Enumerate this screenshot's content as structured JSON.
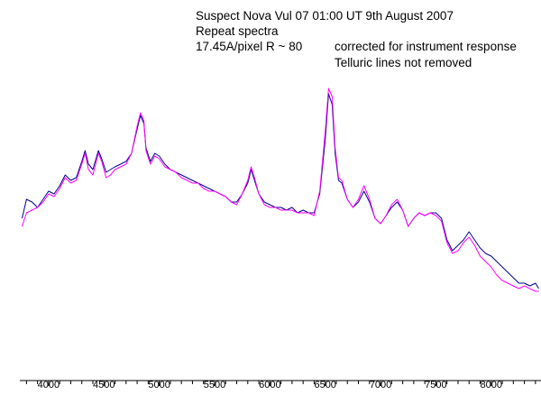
{
  "chart_data": {
    "type": "line",
    "annotations": {
      "line1": "Suspect Nova Vul 07    01:00 UT 9th August 2007",
      "line2": "Repeat spectra",
      "line3": "17.45A/pixel  R ~ 80",
      "line4": "corrected for instrument response",
      "line5": "Telluric lines not removed"
    },
    "xlim": [
      3740,
      8450
    ],
    "ylim": [
      0,
      1
    ],
    "x_ticks": [
      4000,
      4500,
      5000,
      5500,
      6000,
      6500,
      7000,
      7500,
      8000
    ],
    "x_tick_labels": [
      "4000",
      "4500",
      "5000",
      "5500",
      "6000",
      "6500",
      "7000",
      "7500",
      "8000"
    ],
    "grid": false,
    "series": [
      {
        "color": "#00008b",
        "points": [
          [
            3760,
            0.46
          ],
          [
            3800,
            0.53
          ],
          [
            3850,
            0.52
          ],
          [
            3900,
            0.5
          ],
          [
            3950,
            0.53
          ],
          [
            4000,
            0.56
          ],
          [
            4050,
            0.55
          ],
          [
            4100,
            0.58
          ],
          [
            4150,
            0.62
          ],
          [
            4200,
            0.6
          ],
          [
            4250,
            0.61
          ],
          [
            4300,
            0.67
          ],
          [
            4330,
            0.71
          ],
          [
            4360,
            0.66
          ],
          [
            4400,
            0.64
          ],
          [
            4450,
            0.71
          ],
          [
            4480,
            0.68
          ],
          [
            4520,
            0.63
          ],
          [
            4560,
            0.64
          ],
          [
            4600,
            0.65
          ],
          [
            4650,
            0.66
          ],
          [
            4700,
            0.67
          ],
          [
            4750,
            0.7
          ],
          [
            4800,
            0.79
          ],
          [
            4830,
            0.84
          ],
          [
            4861,
            0.81
          ],
          [
            4880,
            0.72
          ],
          [
            4920,
            0.67
          ],
          [
            4960,
            0.7
          ],
          [
            5000,
            0.69
          ],
          [
            5050,
            0.66
          ],
          [
            5100,
            0.64
          ],
          [
            5150,
            0.63
          ],
          [
            5200,
            0.62
          ],
          [
            5250,
            0.61
          ],
          [
            5300,
            0.6
          ],
          [
            5350,
            0.59
          ],
          [
            5400,
            0.58
          ],
          [
            5450,
            0.57
          ],
          [
            5500,
            0.56
          ],
          [
            5550,
            0.55
          ],
          [
            5600,
            0.54
          ],
          [
            5650,
            0.52
          ],
          [
            5700,
            0.52
          ],
          [
            5750,
            0.55
          ],
          [
            5800,
            0.59
          ],
          [
            5830,
            0.64
          ],
          [
            5860,
            0.6
          ],
          [
            5900,
            0.55
          ],
          [
            5950,
            0.52
          ],
          [
            6000,
            0.51
          ],
          [
            6050,
            0.5
          ],
          [
            6100,
            0.5
          ],
          [
            6150,
            0.49
          ],
          [
            6200,
            0.5
          ],
          [
            6250,
            0.48
          ],
          [
            6300,
            0.49
          ],
          [
            6350,
            0.48
          ],
          [
            6400,
            0.48
          ],
          [
            6450,
            0.55
          ],
          [
            6500,
            0.75
          ],
          [
            6530,
            0.92
          ],
          [
            6563,
            0.88
          ],
          [
            6590,
            0.7
          ],
          [
            6620,
            0.6
          ],
          [
            6650,
            0.59
          ],
          [
            6700,
            0.53
          ],
          [
            6750,
            0.5
          ],
          [
            6800,
            0.52
          ],
          [
            6850,
            0.56
          ],
          [
            6900,
            0.52
          ],
          [
            6950,
            0.46
          ],
          [
            7000,
            0.44
          ],
          [
            7050,
            0.47
          ],
          [
            7100,
            0.5
          ],
          [
            7150,
            0.52
          ],
          [
            7200,
            0.49
          ],
          [
            7250,
            0.43
          ],
          [
            7300,
            0.46
          ],
          [
            7350,
            0.48
          ],
          [
            7400,
            0.47
          ],
          [
            7450,
            0.48
          ],
          [
            7500,
            0.48
          ],
          [
            7550,
            0.46
          ],
          [
            7600,
            0.38
          ],
          [
            7650,
            0.34
          ],
          [
            7700,
            0.36
          ],
          [
            7750,
            0.38
          ],
          [
            7800,
            0.41
          ],
          [
            7850,
            0.38
          ],
          [
            7900,
            0.35
          ],
          [
            7950,
            0.33
          ],
          [
            8000,
            0.32
          ],
          [
            8050,
            0.3
          ],
          [
            8100,
            0.28
          ],
          [
            8150,
            0.26
          ],
          [
            8200,
            0.24
          ],
          [
            8250,
            0.22
          ],
          [
            8300,
            0.22
          ],
          [
            8350,
            0.21
          ],
          [
            8400,
            0.22
          ],
          [
            8430,
            0.2
          ]
        ]
      },
      {
        "color": "#ff00ff",
        "points": [
          [
            3760,
            0.43
          ],
          [
            3800,
            0.48
          ],
          [
            3850,
            0.49
          ],
          [
            3900,
            0.5
          ],
          [
            3950,
            0.52
          ],
          [
            4000,
            0.55
          ],
          [
            4050,
            0.54
          ],
          [
            4100,
            0.57
          ],
          [
            4150,
            0.61
          ],
          [
            4200,
            0.59
          ],
          [
            4250,
            0.6
          ],
          [
            4300,
            0.66
          ],
          [
            4330,
            0.7
          ],
          [
            4360,
            0.64
          ],
          [
            4400,
            0.62
          ],
          [
            4450,
            0.7
          ],
          [
            4480,
            0.67
          ],
          [
            4520,
            0.61
          ],
          [
            4560,
            0.62
          ],
          [
            4600,
            0.64
          ],
          [
            4650,
            0.65
          ],
          [
            4700,
            0.66
          ],
          [
            4750,
            0.7
          ],
          [
            4800,
            0.8
          ],
          [
            4830,
            0.85
          ],
          [
            4861,
            0.82
          ],
          [
            4880,
            0.71
          ],
          [
            4920,
            0.66
          ],
          [
            4960,
            0.69
          ],
          [
            5000,
            0.68
          ],
          [
            5050,
            0.65
          ],
          [
            5100,
            0.64
          ],
          [
            5150,
            0.63
          ],
          [
            5200,
            0.61
          ],
          [
            5250,
            0.6
          ],
          [
            5300,
            0.59
          ],
          [
            5350,
            0.59
          ],
          [
            5400,
            0.57
          ],
          [
            5450,
            0.56
          ],
          [
            5500,
            0.56
          ],
          [
            5550,
            0.55
          ],
          [
            5600,
            0.54
          ],
          [
            5650,
            0.52
          ],
          [
            5700,
            0.51
          ],
          [
            5750,
            0.55
          ],
          [
            5800,
            0.6
          ],
          [
            5830,
            0.65
          ],
          [
            5860,
            0.61
          ],
          [
            5900,
            0.55
          ],
          [
            5950,
            0.51
          ],
          [
            6000,
            0.5
          ],
          [
            6050,
            0.5
          ],
          [
            6100,
            0.49
          ],
          [
            6150,
            0.49
          ],
          [
            6200,
            0.49
          ],
          [
            6250,
            0.48
          ],
          [
            6300,
            0.48
          ],
          [
            6350,
            0.48
          ],
          [
            6400,
            0.47
          ],
          [
            6450,
            0.56
          ],
          [
            6500,
            0.78
          ],
          [
            6530,
            0.94
          ],
          [
            6563,
            0.91
          ],
          [
            6590,
            0.72
          ],
          [
            6620,
            0.61
          ],
          [
            6650,
            0.6
          ],
          [
            6700,
            0.53
          ],
          [
            6750,
            0.5
          ],
          [
            6800,
            0.53
          ],
          [
            6850,
            0.58
          ],
          [
            6900,
            0.53
          ],
          [
            6950,
            0.46
          ],
          [
            7000,
            0.44
          ],
          [
            7050,
            0.47
          ],
          [
            7100,
            0.51
          ],
          [
            7150,
            0.53
          ],
          [
            7200,
            0.49
          ],
          [
            7250,
            0.43
          ],
          [
            7300,
            0.46
          ],
          [
            7350,
            0.48
          ],
          [
            7400,
            0.47
          ],
          [
            7450,
            0.48
          ],
          [
            7500,
            0.47
          ],
          [
            7550,
            0.45
          ],
          [
            7600,
            0.37
          ],
          [
            7650,
            0.33
          ],
          [
            7700,
            0.34
          ],
          [
            7750,
            0.37
          ],
          [
            7800,
            0.39
          ],
          [
            7850,
            0.36
          ],
          [
            7900,
            0.32
          ],
          [
            7950,
            0.3
          ],
          [
            8000,
            0.28
          ],
          [
            8050,
            0.25
          ],
          [
            8100,
            0.23
          ],
          [
            8150,
            0.22
          ],
          [
            8200,
            0.21
          ],
          [
            8250,
            0.2
          ],
          [
            8300,
            0.21
          ],
          [
            8350,
            0.2
          ],
          [
            8400,
            0.19
          ],
          [
            8430,
            0.19
          ]
        ]
      }
    ]
  }
}
